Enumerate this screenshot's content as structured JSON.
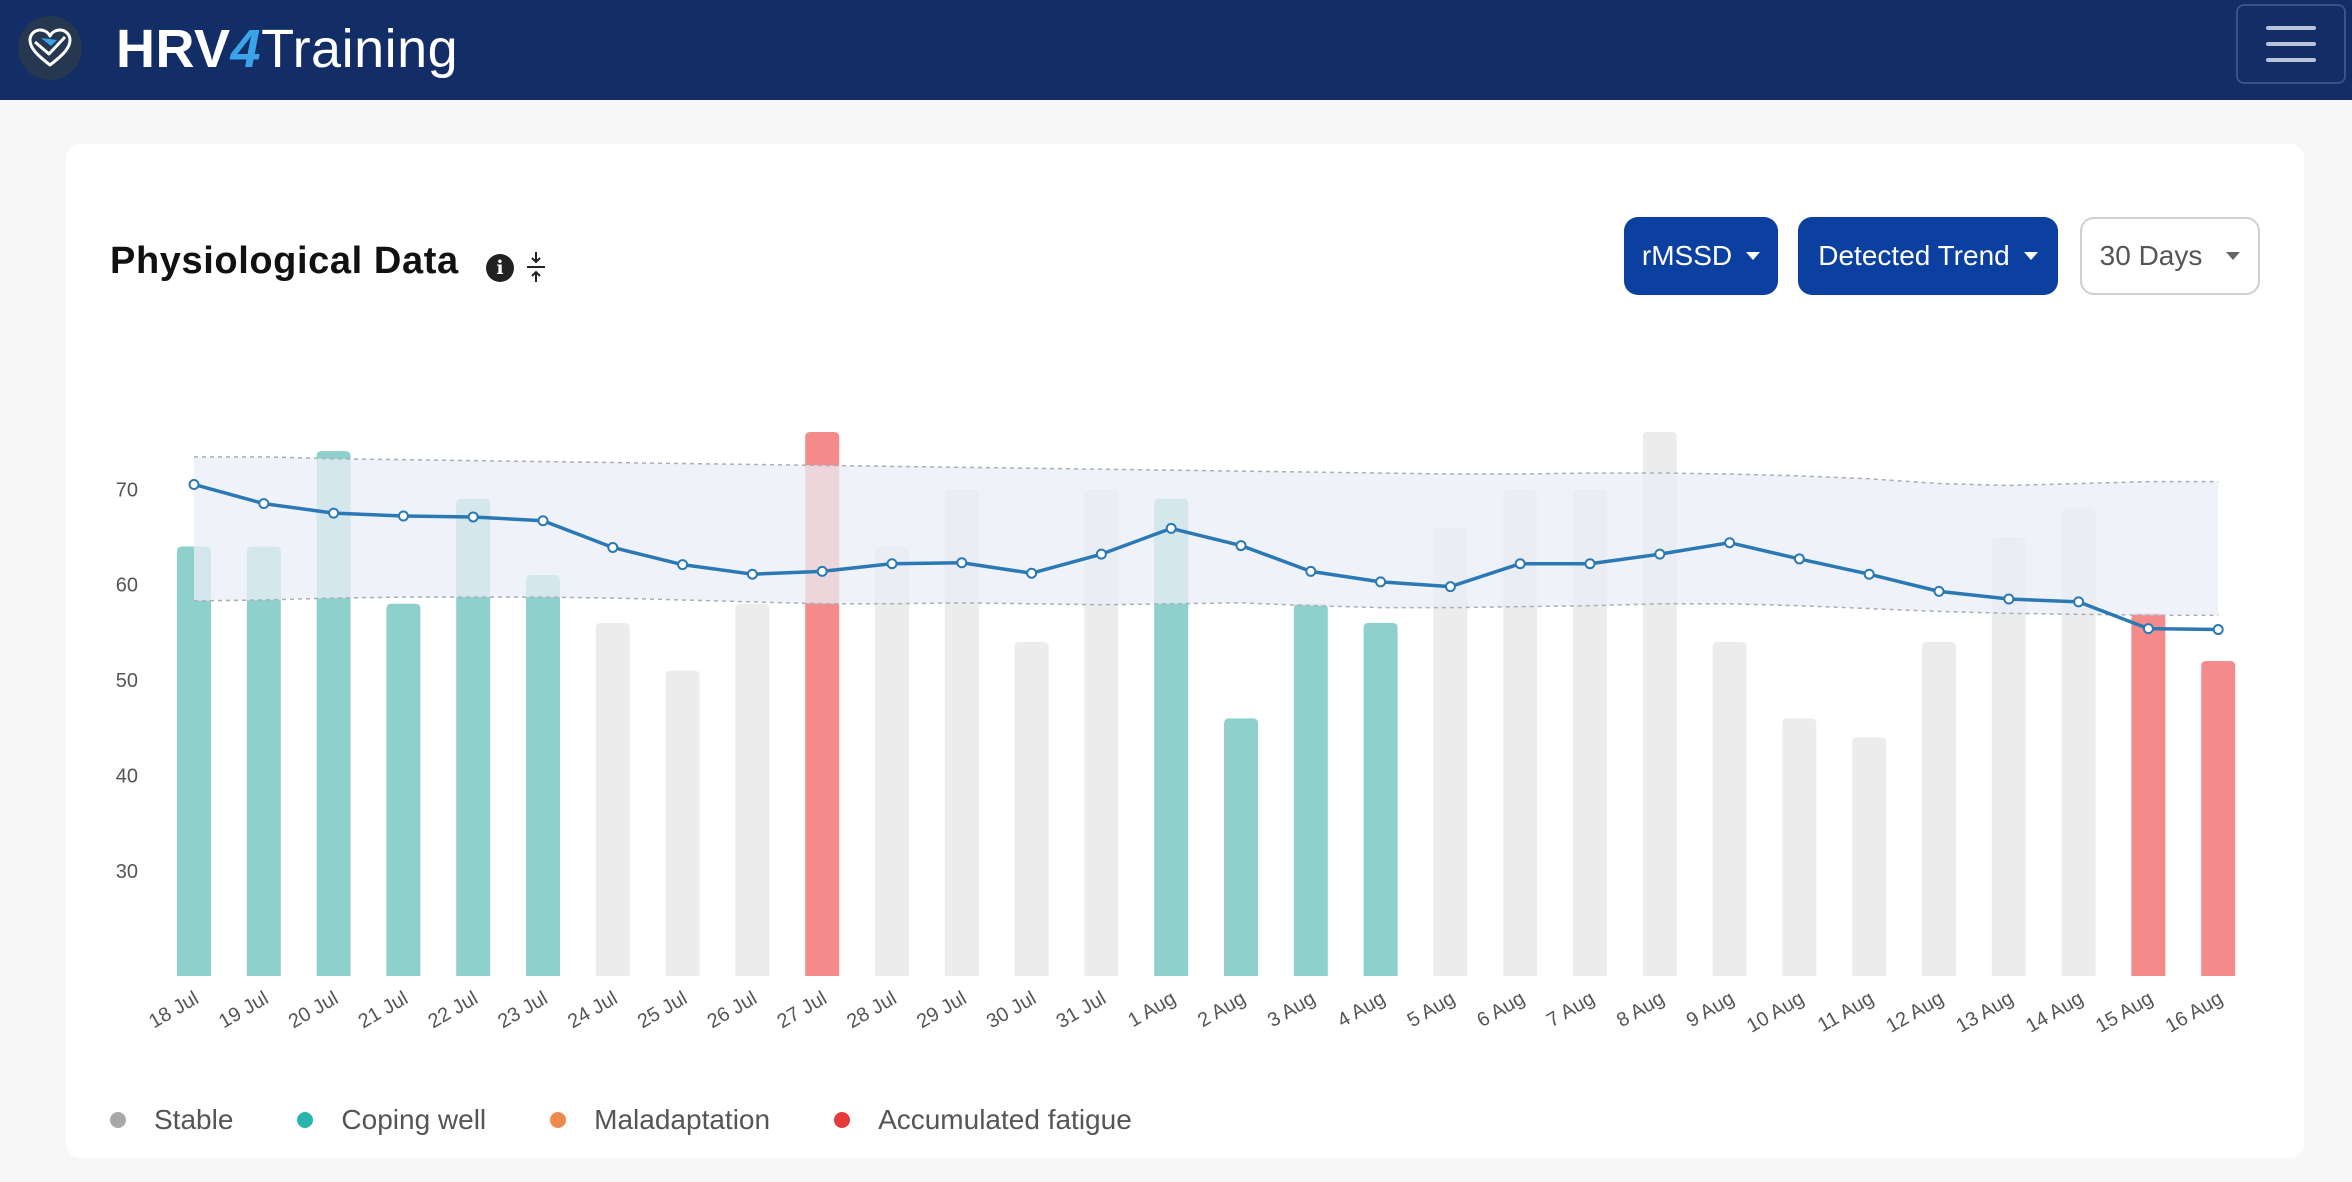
{
  "navbar": {
    "brand_bold": "HRV",
    "brand_accent": "4",
    "brand_rest": "Training",
    "logo_icon": "heart-logo-icon",
    "menu_icon": "hamburger-icon"
  },
  "card": {
    "title": "Physiological Data",
    "info_icon_glyph": "i",
    "controls": {
      "metric_label": "rMSSD",
      "trend_label": "Detected Trend",
      "range_label": "30 Days"
    }
  },
  "colors": {
    "stable": "#ececec",
    "coping_well": "#8ed1cc",
    "maladaptation": "#f08a4b",
    "accumulated_fatigue": "#f58a8a",
    "trend_line": "#2a79b4",
    "band_fill": "#e9edf7",
    "primary_button": "#0b3fa0",
    "navbar": "#132e66"
  },
  "legend": [
    {
      "label": "Stable",
      "color": "#a8a8a8"
    },
    {
      "label": "Coping well",
      "color": "#2bb5ad"
    },
    {
      "label": "Maladaptation",
      "color": "#f08a4b"
    },
    {
      "label": "Accumulated fatigue",
      "color": "#e83a3a"
    }
  ],
  "chart_data": {
    "type": "bar",
    "yticks": [
      30,
      40,
      50,
      60,
      70
    ],
    "ylim": [
      19,
      76
    ],
    "categories": [
      "18 Jul",
      "19 Jul",
      "20 Jul",
      "21 Jul",
      "22 Jul",
      "23 Jul",
      "24 Jul",
      "25 Jul",
      "26 Jul",
      "27 Jul",
      "28 Jul",
      "29 Jul",
      "30 Jul",
      "31 Jul",
      "1 Aug",
      "2 Aug",
      "3 Aug",
      "4 Aug",
      "5 Aug",
      "6 Aug",
      "7 Aug",
      "8 Aug",
      "9 Aug",
      "10 Aug",
      "11 Aug",
      "12 Aug",
      "13 Aug",
      "14 Aug",
      "15 Aug",
      "16 Aug"
    ],
    "series": [
      {
        "values": [
          64,
          64,
          74,
          58,
          69,
          61,
          56,
          51,
          58,
          76,
          64,
          70,
          54,
          70,
          69,
          46,
          58,
          56,
          66,
          70,
          70,
          76,
          54,
          46,
          44,
          54,
          65,
          68,
          57,
          52
        ],
        "status": [
          "coping_well",
          "coping_well",
          "coping_well",
          "coping_well",
          "coping_well",
          "coping_well",
          "stable",
          "stable",
          "stable",
          "accumulated_fatigue",
          "stable",
          "stable",
          "stable",
          "stable",
          "coping_well",
          "coping_well",
          "coping_well",
          "coping_well",
          "stable",
          "stable",
          "stable",
          "stable",
          "stable",
          "stable",
          "stable",
          "stable",
          "stable",
          "stable",
          "accumulated_fatigue",
          "accumulated_fatigue"
        ]
      },
      {
        "type": "line",
        "values": [
          70.5,
          68.5,
          67.5,
          67.2,
          67.1,
          66.7,
          63.9,
          62.1,
          61.1,
          61.4,
          62.2,
          62.3,
          61.2,
          63.2,
          65.9,
          64.1,
          61.4,
          60.3,
          59.8,
          62.2,
          62.2,
          63.2,
          64.4,
          62.7,
          61.1,
          59.3,
          58.5,
          58.2,
          55.4,
          55.3
        ]
      },
      {
        "type": "band",
        "upper": [
          73.4,
          73.4,
          73.2,
          73.1,
          73.0,
          72.9,
          72.8,
          72.7,
          72.6,
          72.5,
          72.4,
          72.3,
          72.2,
          72.1,
          72.0,
          71.9,
          71.8,
          71.7,
          71.6,
          71.6,
          71.7,
          71.7,
          71.6,
          71.4,
          71.1,
          70.6,
          70.4,
          70.6,
          70.8,
          70.8
        ],
        "lower": [
          58.3,
          58.4,
          58.6,
          58.7,
          58.7,
          58.7,
          58.6,
          58.4,
          58.2,
          58.0,
          58.0,
          58.1,
          58.0,
          57.9,
          58.0,
          58.1,
          57.8,
          57.6,
          57.6,
          57.7,
          57.8,
          58.0,
          58.0,
          57.8,
          57.5,
          57.2,
          57.0,
          56.9,
          56.8,
          56.8
        ]
      }
    ],
    "grid": false,
    "legend_position": "bottom-left"
  }
}
